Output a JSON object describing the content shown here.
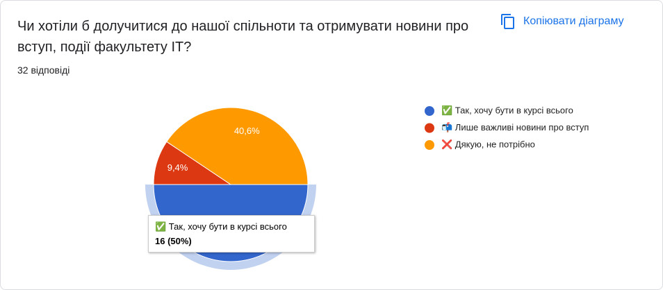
{
  "chart_data": {
    "type": "pie",
    "title": "Чи хотіли б долучитися до нашої спільноти та отримувати новини про вступ, події факультету ІТ?",
    "subtitle": "32 відповіді",
    "action": "Копіювати діаграму",
    "categories": [
      "✅ Так, хочу бути в курсі всього",
      "📬 Лише важливі новини про вступ",
      "❌ Дякую, не потрібно"
    ],
    "values": [
      50,
      9.4,
      40.6
    ],
    "value_labels": [
      null,
      "9,4%",
      "40,6%"
    ],
    "colors": [
      "#3366cc",
      "#dc3912",
      "#ff9900"
    ],
    "legend": "right",
    "tooltip": {
      "category": 0,
      "text": "16 (50%)"
    }
  }
}
